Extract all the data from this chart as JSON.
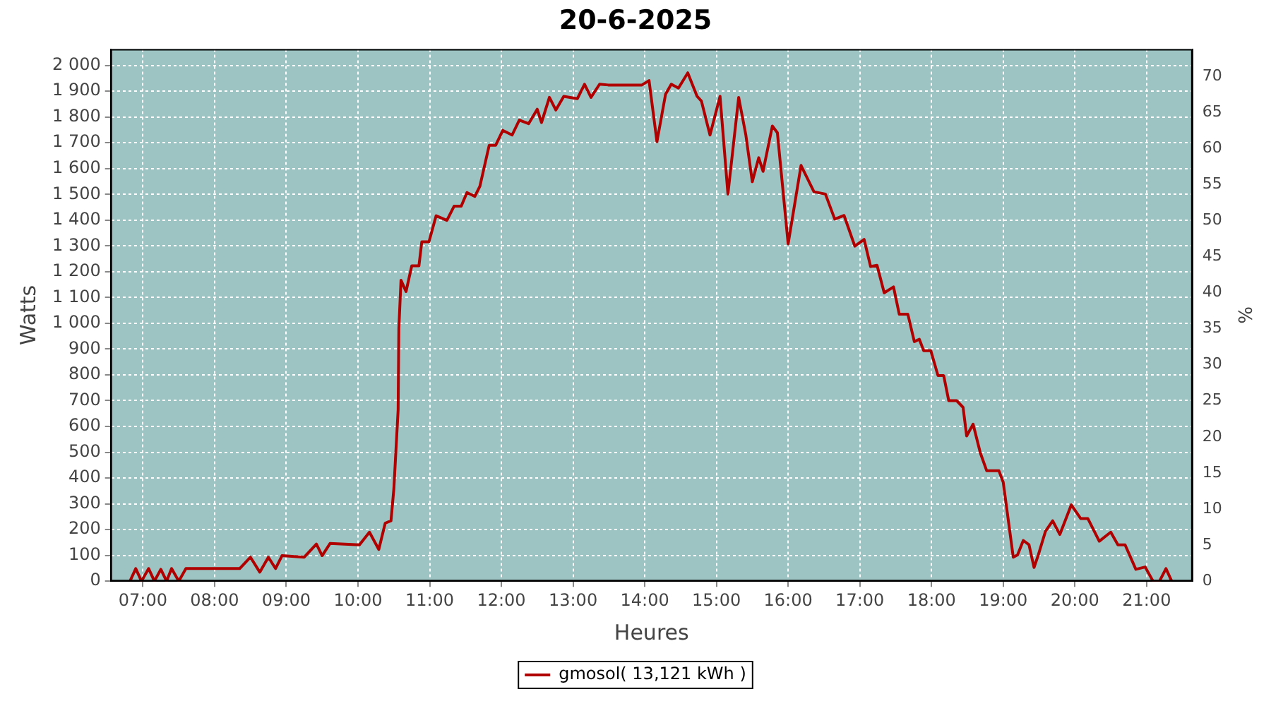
{
  "chart_data": {
    "type": "line",
    "title": "20-6-2025",
    "xlabel": "Heures",
    "ylabel": "Watts",
    "y2label": "%",
    "x": [
      6.82,
      6.9,
      6.98,
      7.08,
      7.16,
      7.25,
      7.33,
      7.4,
      7.5,
      7.6,
      8.35,
      8.5,
      8.63,
      8.75,
      8.85,
      8.94,
      9.25,
      9.42,
      9.5,
      9.61,
      10.02,
      10.16,
      10.29,
      10.38,
      10.46,
      10.5,
      10.56,
      10.57,
      10.6,
      10.67,
      10.75,
      10.85,
      10.89,
      10.99,
      11.09,
      11.24,
      11.34,
      11.44,
      11.52,
      11.63,
      11.7,
      11.83,
      11.92,
      12.02,
      12.15,
      12.25,
      12.38,
      12.5,
      12.56,
      12.67,
      12.76,
      12.87,
      13.06,
      13.16,
      13.25,
      13.37,
      13.49,
      13.96,
      14.06,
      14.17,
      14.29,
      14.37,
      14.47,
      14.6,
      14.73,
      14.79,
      14.91,
      15.05,
      15.16,
      15.31,
      15.41,
      15.5,
      15.59,
      15.65,
      15.78,
      15.85,
      16.0,
      16.18,
      16.36,
      16.52,
      16.65,
      16.78,
      16.93,
      17.06,
      17.15,
      17.24,
      17.34,
      17.47,
      17.55,
      17.67,
      17.76,
      17.83,
      17.89,
      17.99,
      18.09,
      18.17,
      18.24,
      18.35,
      18.44,
      18.49,
      18.58,
      18.68,
      18.77,
      18.94,
      19.0,
      19.14,
      19.2,
      19.28,
      19.36,
      19.43,
      19.49,
      19.59,
      19.69,
      19.79,
      19.95,
      20.08,
      20.18,
      20.34,
      20.5,
      20.6,
      20.7,
      20.85,
      20.98,
      21.09,
      21.18,
      21.27,
      21.35
    ],
    "series": [
      {
        "name": "gmosol( 13,121 kWh )",
        "color": "#b00000",
        "values": [
          0,
          49,
          0,
          49,
          0,
          46,
          0,
          49,
          0,
          49,
          49,
          93,
          35,
          93,
          49,
          99,
          93,
          144,
          99,
          146,
          141,
          190,
          123,
          225,
          234,
          357,
          665,
          982,
          1167,
          1123,
          1223,
          1223,
          1316,
          1316,
          1417,
          1399,
          1454,
          1454,
          1507,
          1492,
          1531,
          1690,
          1690,
          1748,
          1730,
          1788,
          1774,
          1830,
          1778,
          1876,
          1827,
          1880,
          1871,
          1927,
          1876,
          1927,
          1924,
          1924,
          1941,
          1704,
          1888,
          1927,
          1912,
          1971,
          1880,
          1862,
          1730,
          1880,
          1501,
          1876,
          1730,
          1549,
          1642,
          1589,
          1765,
          1739,
          1308,
          1612,
          1510,
          1501,
          1404,
          1418,
          1299,
          1325,
          1220,
          1225,
          1118,
          1141,
          1035,
          1035,
          929,
          938,
          894,
          894,
          797,
          797,
          700,
          700,
          674,
          563,
          609,
          498,
          428,
          428,
          384,
          93,
          102,
          158,
          141,
          53,
          102,
          194,
          234,
          181,
          296,
          243,
          243,
          155,
          190,
          141,
          141,
          46,
          55,
          0,
          0,
          49,
          0
        ]
      }
    ],
    "xlim": [
      6.55,
      21.64
    ],
    "xticks": [
      {
        "value": 7,
        "label": "07:00"
      },
      {
        "value": 8,
        "label": "08:00"
      },
      {
        "value": 9,
        "label": "09:00"
      },
      {
        "value": 10,
        "label": "10:00"
      },
      {
        "value": 11,
        "label": "11:00"
      },
      {
        "value": 12,
        "label": "12:00"
      },
      {
        "value": 13,
        "label": "13:00"
      },
      {
        "value": 14,
        "label": "14:00"
      },
      {
        "value": 15,
        "label": "15:00"
      },
      {
        "value": 16,
        "label": "16:00"
      },
      {
        "value": 17,
        "label": "17:00"
      },
      {
        "value": 18,
        "label": "18:00"
      },
      {
        "value": 19,
        "label": "19:00"
      },
      {
        "value": 20,
        "label": "20:00"
      },
      {
        "value": 21,
        "label": "21:00"
      }
    ],
    "ylim": [
      0,
      2063
    ],
    "yticks": [
      0,
      100,
      200,
      300,
      400,
      500,
      600,
      700,
      800,
      900,
      {
        "value": 1000,
        "label": "1 000"
      },
      {
        "value": 1100,
        "label": "1 100"
      },
      {
        "value": 1200,
        "label": "1 200"
      },
      {
        "value": 1300,
        "label": "1 300"
      },
      {
        "value": 1400,
        "label": "1 400"
      },
      {
        "value": 1500,
        "label": "1 500"
      },
      {
        "value": 1600,
        "label": "1 600"
      },
      {
        "value": 1700,
        "label": "1 700"
      },
      {
        "value": 1800,
        "label": "1 800"
      },
      {
        "value": 1900,
        "label": "1 900"
      },
      {
        "value": 2000,
        "label": "2 000"
      }
    ],
    "y2lim": [
      0,
      73.75
    ],
    "y2ticks": [
      0,
      5,
      10,
      15,
      20,
      25,
      30,
      35,
      40,
      45,
      50,
      55,
      60,
      65,
      70
    ],
    "grid": true,
    "legend": "bottom",
    "marker": "none",
    "line_style": "solid"
  }
}
